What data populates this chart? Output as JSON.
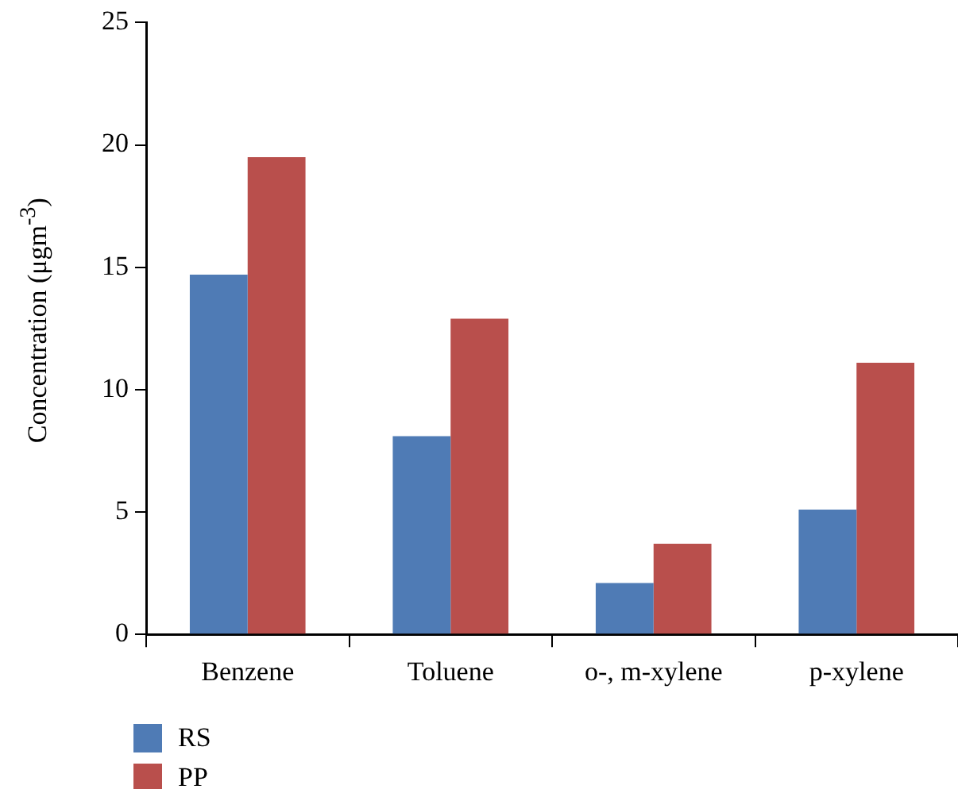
{
  "chart_data": {
    "type": "bar",
    "ylabel": "Concentration (μgm$^{-3}$)",
    "categories": [
      "Benzene",
      "Toluene",
      "o-, m-xylene",
      "p-xylene"
    ],
    "series": [
      {
        "name": "RS",
        "color": "#4f7bb5",
        "values": [
          14.7,
          8.1,
          2.1,
          5.1
        ]
      },
      {
        "name": "PP",
        "color": "#b94f4c",
        "values": [
          19.5,
          12.9,
          3.7,
          11.1
        ]
      }
    ],
    "ylim": [
      0,
      25
    ],
    "yticks": [
      0,
      5,
      10,
      15,
      20,
      25
    ],
    "grid": false,
    "legend": "bottom left"
  }
}
